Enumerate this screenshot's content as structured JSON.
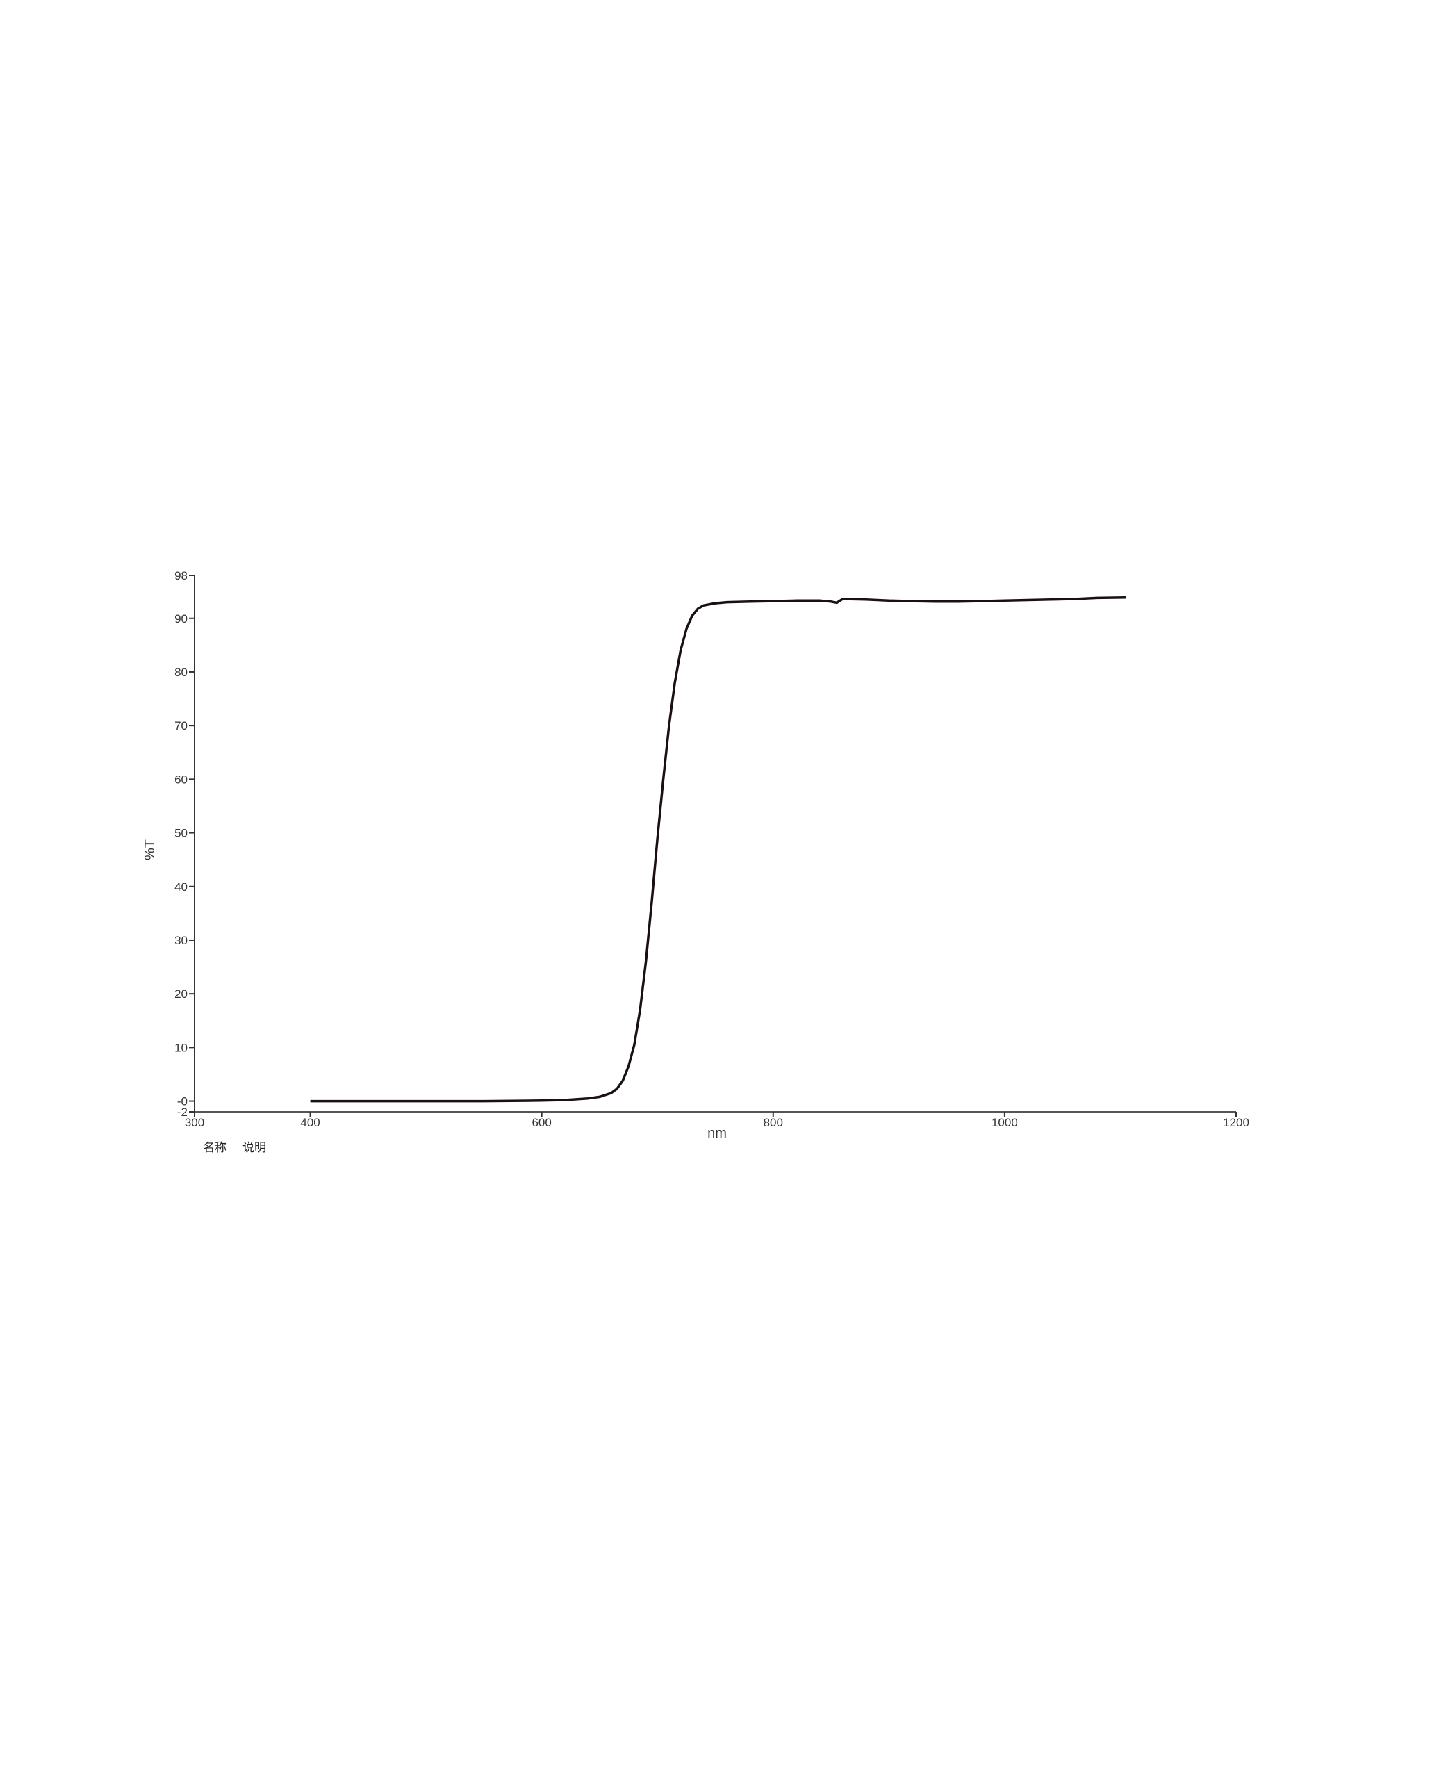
{
  "chart_data": {
    "type": "line",
    "title": "",
    "xlabel": "nm",
    "ylabel": "%T",
    "xlim": [
      300,
      1200
    ],
    "ylim": [
      -2,
      98
    ],
    "x_ticks": [
      300,
      400,
      600,
      800,
      1000,
      1200
    ],
    "x_tick_labels": [
      "300",
      "400",
      "600",
      "800",
      "1000",
      "1200"
    ],
    "y_ticks": [
      98,
      90,
      80,
      70,
      60,
      50,
      40,
      30,
      20,
      10,
      0,
      -2
    ],
    "y_tick_labels": [
      "98",
      "90",
      "80",
      "70",
      "60",
      "50",
      "40",
      "30",
      "20",
      "10",
      "-0",
      "-2"
    ],
    "grid": false,
    "line_color": "#1a1010",
    "legend": {
      "name_header": "名称",
      "description_header": "说明"
    },
    "series": [
      {
        "x": [
          400,
          450,
          500,
          550,
          600,
          620,
          640,
          650,
          660,
          665,
          670,
          675,
          680,
          685,
          690,
          695,
          700,
          705,
          710,
          715,
          720,
          725,
          730,
          735,
          740,
          750,
          760,
          780,
          800,
          820,
          840,
          850,
          855,
          860,
          880,
          900,
          920,
          940,
          960,
          980,
          1000,
          1020,
          1040,
          1060,
          1080,
          1105
        ],
        "y": [
          0.0,
          0.0,
          0.0,
          0.0,
          0.1,
          0.2,
          0.5,
          0.8,
          1.5,
          2.3,
          3.8,
          6.5,
          10.5,
          17,
          26,
          37,
          49,
          60,
          70,
          78,
          84,
          88,
          90.5,
          91.8,
          92.4,
          92.8,
          93.0,
          93.1,
          93.2,
          93.3,
          93.3,
          93.1,
          92.9,
          93.6,
          93.5,
          93.3,
          93.2,
          93.1,
          93.1,
          93.2,
          93.3,
          93.4,
          93.5,
          93.6,
          93.8,
          93.9
        ]
      }
    ]
  }
}
